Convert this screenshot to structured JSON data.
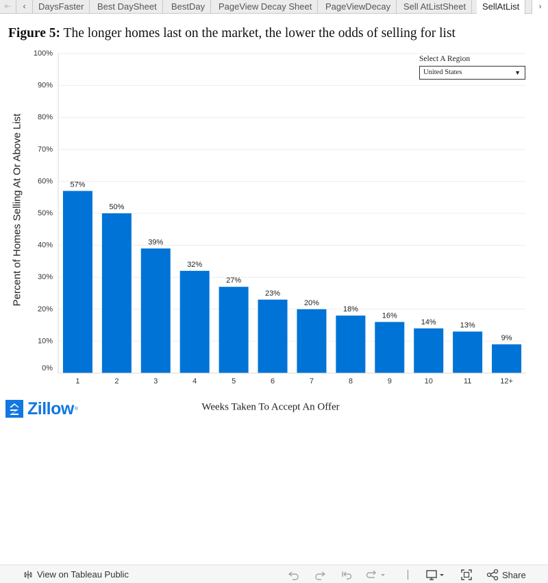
{
  "tabs": {
    "items": [
      {
        "label": "DaysFaster",
        "active": false
      },
      {
        "label": "Best DaySheet",
        "active": false
      },
      {
        "label": "BestDay",
        "active": false
      },
      {
        "label": "PageView Decay Sheet",
        "active": false
      },
      {
        "label": "PageViewDecay",
        "active": false
      },
      {
        "label": "Sell AtListSheet",
        "active": false
      },
      {
        "label": "SellAtList",
        "active": true
      }
    ],
    "prev_start_icon": "chevron-bar-left-icon",
    "prev_icon": "chevron-left-icon",
    "next_icon": "chevron-right-icon"
  },
  "title": {
    "prefix": "Figure 5:",
    "text": "The longer homes last on the market, the lower the odds of selling for list"
  },
  "region_filter": {
    "label": "Select A Region",
    "selected": "United States",
    "icon": "dropdown-triangle-icon"
  },
  "chart_data": {
    "type": "bar",
    "categories": [
      "1",
      "2",
      "3",
      "4",
      "5",
      "6",
      "7",
      "8",
      "9",
      "10",
      "11",
      "12+"
    ],
    "values": [
      57,
      50,
      39,
      32,
      27,
      23,
      20,
      18,
      16,
      14,
      13,
      9
    ],
    "value_labels": [
      "57%",
      "50%",
      "39%",
      "32%",
      "27%",
      "23%",
      "20%",
      "18%",
      "16%",
      "14%",
      "13%",
      "9%"
    ],
    "ylabel": "Percent of Homes Selling At Or Above List",
    "xlabel": "Weeks Taken To Accept An Offer",
    "y_ticks": [
      "0%",
      "10%",
      "20%",
      "30%",
      "40%",
      "50%",
      "60%",
      "70%",
      "80%",
      "90%",
      "100%"
    ],
    "ylim": [
      0,
      100
    ],
    "grid": true,
    "bar_color": "#0073d6"
  },
  "logo": {
    "text": "Zillow",
    "mark": "®",
    "icon": "zillow-z-icon",
    "color": "#1277e1"
  },
  "footer": {
    "view_on_public": "View on Tableau Public",
    "share": "Share",
    "icons": {
      "tableau": "tableau-cross-icon",
      "undo": "undo-icon",
      "redo": "redo-icon",
      "revert": "revert-icon",
      "refresh": "refresh-icon",
      "download": "download-icon",
      "fullscreen": "fullscreen-icon",
      "share": "share-icon"
    }
  }
}
